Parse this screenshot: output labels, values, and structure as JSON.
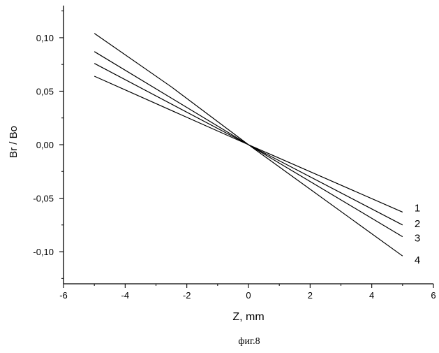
{
  "chart_data": {
    "type": "line",
    "title": "",
    "xlabel": "Z, mm",
    "ylabel": "Br / Bo",
    "caption": "фиг.8",
    "xlim": [
      -6,
      6
    ],
    "ylim": [
      -0.13,
      0.13
    ],
    "x_ticks": [
      -6,
      -4,
      -2,
      0,
      2,
      4,
      6
    ],
    "x_tick_labels": [
      "-6",
      "-4",
      "-2",
      "0",
      "2",
      "4",
      "6"
    ],
    "y_ticks": [
      0.1,
      0.05,
      0.0,
      -0.05,
      -0.1
    ],
    "y_tick_labels": [
      "0,10",
      "0,05",
      "0,00",
      "-0,05",
      "-0,10"
    ],
    "grid": false,
    "legend": "none",
    "series": [
      {
        "name": "1",
        "points": [
          [
            -5,
            0.064
          ],
          [
            0,
            0.0
          ],
          [
            5,
            -0.063
          ]
        ]
      },
      {
        "name": "2",
        "points": [
          [
            -5,
            0.076
          ],
          [
            0,
            0.0
          ],
          [
            5,
            -0.075
          ]
        ]
      },
      {
        "name": "3",
        "points": [
          [
            -5,
            0.087
          ],
          [
            0,
            0.0
          ],
          [
            5,
            -0.086
          ]
        ]
      },
      {
        "name": "4",
        "points": [
          [
            -5,
            0.104
          ],
          [
            -2.5,
            0.054
          ],
          [
            0,
            0.0
          ],
          [
            5,
            -0.104
          ]
        ]
      }
    ],
    "line_color": "#000000"
  }
}
